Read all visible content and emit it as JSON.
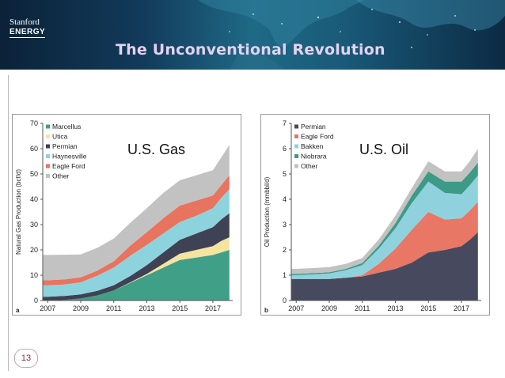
{
  "header": {
    "brand_line1": "Stanford",
    "brand_line2": "ENERGY",
    "title": "The Unconventional Revolution"
  },
  "page_number": "13",
  "chart_data": [
    {
      "type": "area",
      "stacked": true,
      "panel_label": "a",
      "title": "U.S. Gas",
      "ylabel": "Natural Gas Production (bcf/d)",
      "xlabel": "",
      "ylim": [
        0,
        70
      ],
      "yticks": [
        0,
        10,
        20,
        30,
        40,
        50,
        60,
        70
      ],
      "xlim": [
        2006.7,
        2018.2
      ],
      "xticks": [
        2007,
        2009,
        2011,
        2013,
        2015,
        2017
      ],
      "grid": false,
      "legend_position": "top-left",
      "x": [
        2006.7,
        2007,
        2008,
        2009,
        2010,
        2011,
        2012,
        2013,
        2014,
        2015,
        2016,
        2017,
        2017.5,
        2018
      ],
      "series": [
        {
          "name": "Marcellus",
          "color": "#3fa087",
          "values": [
            0,
            0,
            0.2,
            0.8,
            2,
            4,
            7,
            10,
            13,
            16,
            17,
            18,
            19,
            20
          ]
        },
        {
          "name": "Utica",
          "color": "#f4e4a0",
          "values": [
            0,
            0,
            0,
            0,
            0,
            0,
            0.2,
            0.5,
            1.5,
            2.5,
            3,
            3.5,
            4.5,
            5
          ]
        },
        {
          "name": "Permian",
          "color": "#3f4154",
          "values": [
            1.5,
            1.5,
            1.6,
            1.6,
            1.8,
            2,
            2.5,
            3.5,
            4.5,
            5.5,
            6.5,
            7.5,
            8.5,
            9.5
          ]
        },
        {
          "name": "Haynesville",
          "color": "#8dd3dd",
          "values": [
            4.5,
            4.5,
            4.5,
            4.8,
            6,
            7,
            8,
            8,
            7.5,
            7,
            7,
            7.5,
            8.5,
            9.5
          ]
        },
        {
          "name": "Eagle Ford",
          "color": "#e8735e",
          "values": [
            2,
            2,
            2,
            2,
            2,
            2.5,
            4,
            5,
            6,
            6.5,
            6,
            5,
            5,
            5.5
          ]
        },
        {
          "name": "Other",
          "color": "#c2c2c2",
          "values": [
            10,
            10,
            9.8,
            9,
            9,
            9,
            9,
            9.5,
            10,
            10,
            10,
            10,
            11,
            12
          ]
        }
      ]
    },
    {
      "type": "area",
      "stacked": true,
      "panel_label": "b",
      "title": "U.S. Oil",
      "ylabel": "Oil Production (mmbbl/d)",
      "xlabel": "",
      "ylim": [
        0,
        7
      ],
      "yticks": [
        0,
        1,
        2,
        3,
        4,
        5,
        6,
        7
      ],
      "xlim": [
        2006.7,
        2018.2
      ],
      "xticks": [
        2007,
        2009,
        2011,
        2013,
        2015,
        2017
      ],
      "grid": false,
      "legend_position": "top-left",
      "x": [
        2006.7,
        2007,
        2008,
        2009,
        2010,
        2011,
        2012,
        2013,
        2014,
        2015,
        2016,
        2017,
        2017.5,
        2018
      ],
      "series": [
        {
          "name": "Permian",
          "color": "#474a5e",
          "values": [
            0.85,
            0.85,
            0.85,
            0.85,
            0.9,
            0.95,
            1.1,
            1.25,
            1.5,
            1.9,
            2,
            2.15,
            2.4,
            2.7
          ]
        },
        {
          "name": "Eagle Ford",
          "color": "#e87765",
          "values": [
            0,
            0,
            0,
            0,
            0,
            0.05,
            0.35,
            0.8,
            1.3,
            1.6,
            1.2,
            1.1,
            1.15,
            1.2
          ]
        },
        {
          "name": "Bakken",
          "color": "#8fd2de",
          "values": [
            0.15,
            0.15,
            0.18,
            0.22,
            0.3,
            0.4,
            0.6,
            0.8,
            1.05,
            1.2,
            1.05,
            0.95,
            1,
            1.05
          ]
        },
        {
          "name": "Niobrara",
          "color": "#3d9a86",
          "values": [
            0.05,
            0.05,
            0.05,
            0.05,
            0.05,
            0.08,
            0.12,
            0.2,
            0.3,
            0.4,
            0.45,
            0.5,
            0.5,
            0.5
          ]
        },
        {
          "name": "Other",
          "color": "#c2c2c2",
          "values": [
            0.2,
            0.2,
            0.2,
            0.2,
            0.2,
            0.2,
            0.25,
            0.3,
            0.3,
            0.4,
            0.4,
            0.4,
            0.45,
            0.55
          ]
        }
      ]
    }
  ]
}
